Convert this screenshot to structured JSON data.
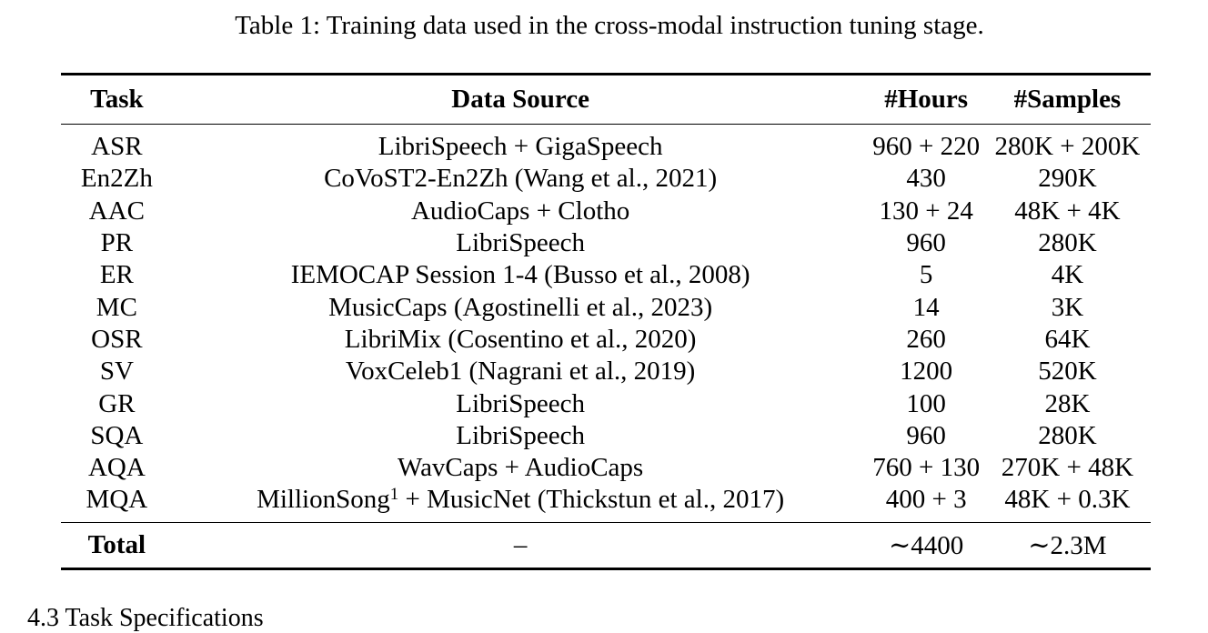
{
  "caption": "Table 1: Training data used in the cross-modal instruction tuning stage.",
  "table": {
    "headers": [
      "Task",
      "Data Source",
      "#Hours",
      "#Samples"
    ],
    "rows": [
      {
        "task": "ASR",
        "source": "LibriSpeech + GigaSpeech",
        "hours": "960 + 220",
        "samples": "280K + 200K"
      },
      {
        "task": "En2Zh",
        "source": "CoVoST2-En2Zh (Wang et al., 2021)",
        "hours": "430",
        "samples": "290K"
      },
      {
        "task": "AAC",
        "source": "AudioCaps + Clotho",
        "hours": "130 + 24",
        "samples": "48K + 4K"
      },
      {
        "task": "PR",
        "source": "LibriSpeech",
        "hours": "960",
        "samples": "280K"
      },
      {
        "task": "ER",
        "source": "IEMOCAP Session 1-4 (Busso et al., 2008)",
        "hours": "5",
        "samples": "4K"
      },
      {
        "task": "MC",
        "source": "MusicCaps (Agostinelli et al., 2023)",
        "hours": "14",
        "samples": "3K"
      },
      {
        "task": "OSR",
        "source": "LibriMix (Cosentino et al., 2020)",
        "hours": "260",
        "samples": "64K"
      },
      {
        "task": "SV",
        "source": "VoxCeleb1 (Nagrani et al., 2019)",
        "hours": "1200",
        "samples": "520K"
      },
      {
        "task": "GR",
        "source": "LibriSpeech",
        "hours": "100",
        "samples": "28K"
      },
      {
        "task": "SQA",
        "source": "LibriSpeech",
        "hours": "960",
        "samples": "280K"
      },
      {
        "task": "AQA",
        "source": "WavCaps + AudioCaps",
        "hours": "760 + 130",
        "samples": "270K + 48K"
      },
      {
        "task": "MQA",
        "source_pre": "MillionSong",
        "source_footnote": "1",
        "source_post": " + MusicNet (Thickstun et al., 2017)",
        "hours": "400 + 3",
        "samples": "48K + 0.3K"
      }
    ],
    "total": {
      "label": "Total",
      "source": "–",
      "hours": "∼4400",
      "samples": "∼2.3M"
    }
  },
  "next_section_heading": "4.3    Task Specifications"
}
